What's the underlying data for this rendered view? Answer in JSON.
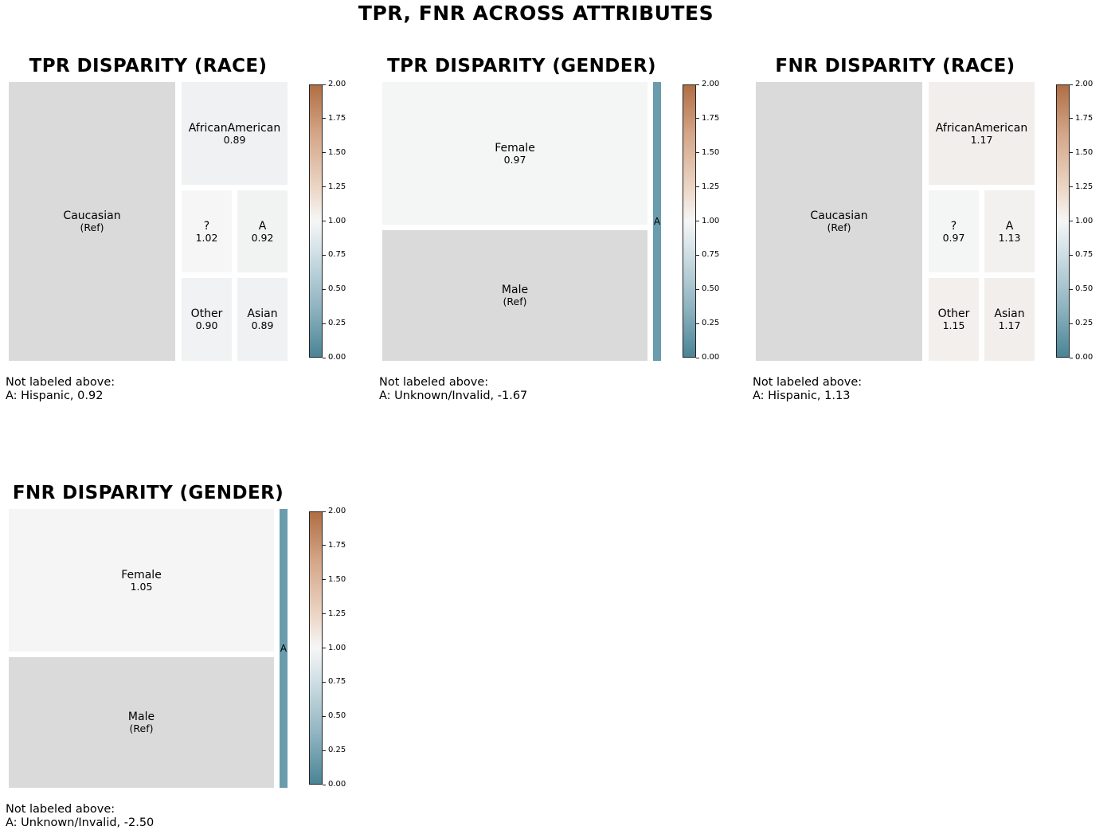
{
  "title": "TPR, FNR ACROSS ATTRIBUTES",
  "colorbar": {
    "ticks": [
      "0.00",
      "0.25",
      "0.50",
      "0.75",
      "1.00",
      "1.25",
      "1.50",
      "1.75",
      "2.00"
    ],
    "range": [
      0,
      2
    ],
    "colors": {
      "low": "#4a8496",
      "mid": "#f6f6f6",
      "high": "#b06e44",
      "reference": "#dadada"
    }
  },
  "panels": [
    {
      "title": "TPR DISPARITY (RACE)",
      "note_heading": "Not labeled above:",
      "note_text": "A: Hispanic, 0.92",
      "cells": [
        {
          "name": "Caucasian",
          "value": "(Ref)"
        },
        {
          "name": "AfricanAmerican",
          "value": "0.89"
        },
        {
          "name": "?",
          "value": "1.02"
        },
        {
          "name": "A",
          "value": "0.92"
        },
        {
          "name": "Other",
          "value": "0.90"
        },
        {
          "name": "Asian",
          "value": "0.89"
        }
      ]
    },
    {
      "title": "TPR DISPARITY (GENDER)",
      "note_heading": "Not labeled above:",
      "note_text": "A: Unknown/Invalid, -1.67",
      "cells": [
        {
          "name": "Female",
          "value": "0.97"
        },
        {
          "name": "Male",
          "value": "(Ref)"
        },
        {
          "name": "A",
          "value": ""
        }
      ]
    },
    {
      "title": "FNR DISPARITY (RACE)",
      "note_heading": "Not labeled above:",
      "note_text": "A: Hispanic, 1.13",
      "cells": [
        {
          "name": "Caucasian",
          "value": "(Ref)"
        },
        {
          "name": "AfricanAmerican",
          "value": "1.17"
        },
        {
          "name": "?",
          "value": "0.97"
        },
        {
          "name": "A",
          "value": "1.13"
        },
        {
          "name": "Other",
          "value": "1.15"
        },
        {
          "name": "Asian",
          "value": "1.17"
        }
      ]
    },
    {
      "title": "FNR DISPARITY (GENDER)",
      "note_heading": "Not labeled above:",
      "note_text": "A: Unknown/Invalid, -2.50",
      "cells": [
        {
          "name": "Female",
          "value": "1.05"
        },
        {
          "name": "Male",
          "value": "(Ref)"
        },
        {
          "name": "A",
          "value": ""
        }
      ]
    }
  ],
  "chart_data": [
    {
      "type": "treemap",
      "title": "TPR DISPARITY (RACE)",
      "reference": "Caucasian",
      "categories": [
        "Caucasian",
        "AfricanAmerican",
        "?",
        "A",
        "Other",
        "Asian"
      ],
      "values": [
        1.0,
        0.89,
        1.02,
        0.92,
        0.9,
        0.89
      ],
      "colorbar_range": [
        0,
        2
      ]
    },
    {
      "type": "treemap",
      "title": "TPR DISPARITY (GENDER)",
      "reference": "Male",
      "categories": [
        "Female",
        "Male",
        "A"
      ],
      "values": [
        0.97,
        1.0,
        -1.67
      ],
      "colorbar_range": [
        0,
        2
      ]
    },
    {
      "type": "treemap",
      "title": "FNR DISPARITY (RACE)",
      "reference": "Caucasian",
      "categories": [
        "Caucasian",
        "AfricanAmerican",
        "?",
        "A",
        "Other",
        "Asian"
      ],
      "values": [
        1.0,
        1.17,
        0.97,
        1.13,
        1.15,
        1.17
      ],
      "colorbar_range": [
        0,
        2
      ]
    },
    {
      "type": "treemap",
      "title": "FNR DISPARITY (GENDER)",
      "reference": "Male",
      "categories": [
        "Female",
        "Male",
        "A"
      ],
      "values": [
        1.05,
        1.0,
        -2.5
      ],
      "colorbar_range": [
        0,
        2
      ]
    }
  ]
}
